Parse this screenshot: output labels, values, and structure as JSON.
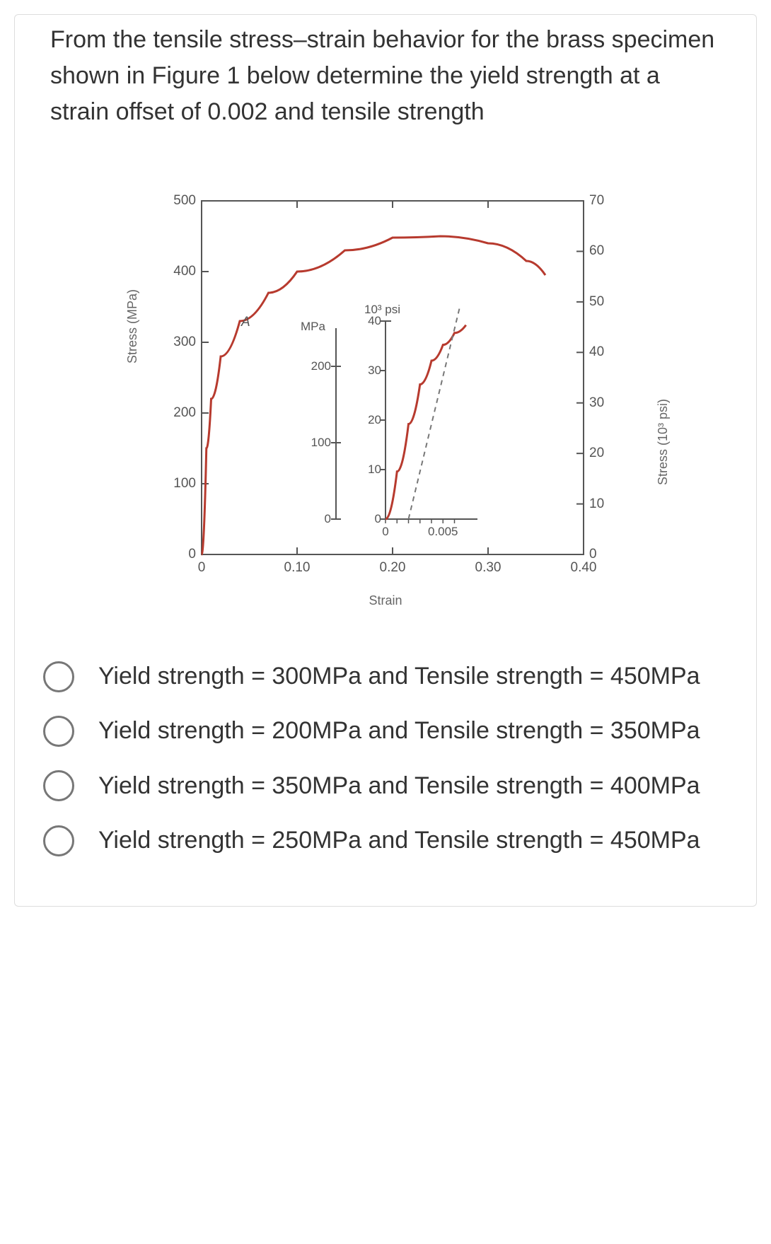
{
  "question": "From the tensile stress–strain behavior for the brass specimen shown in Figure 1 below determine the yield strength at a strain offset of 0.002 and tensile strength",
  "chart": {
    "type": "line",
    "left_axis": {
      "label": "Stress (MPa)",
      "ticks": [
        0,
        100,
        200,
        300,
        400,
        500
      ],
      "lim": [
        0,
        500
      ],
      "fontsize": 18
    },
    "right_axis": {
      "label": "Stress (10³ psi)",
      "ticks": [
        0,
        10,
        20,
        30,
        40,
        50,
        60,
        70
      ],
      "lim": [
        0,
        70
      ],
      "fontsize": 18
    },
    "x_axis": {
      "label": "Strain",
      "ticks": [
        0,
        0.1,
        0.2,
        0.3,
        0.4
      ],
      "lim": [
        0,
        0.4
      ],
      "fontsize": 18
    },
    "series": {
      "name": "brass",
      "color": "#b73a2e",
      "line_width": 3,
      "points_strain": [
        0,
        0.005,
        0.01,
        0.02,
        0.04,
        0.07,
        0.1,
        0.15,
        0.2,
        0.25,
        0.3,
        0.34,
        0.36
      ],
      "points_stress_mpa": [
        0,
        150,
        220,
        280,
        330,
        370,
        400,
        430,
        448,
        450,
        440,
        415,
        395
      ]
    },
    "point_A": {
      "label": "A",
      "strain": 0.04,
      "stress_mpa": 335
    },
    "inset": {
      "left_unit": "MPa",
      "right_unit": "10³ psi",
      "left_ticks": [
        0,
        100,
        200
      ],
      "right_ticks": [
        0,
        10,
        20,
        30,
        40
      ],
      "x_ticks": [
        0,
        0.005
      ],
      "curve_color": "#b73a2e",
      "offset_line_color": "#777",
      "curve_points_x": [
        0,
        0.001,
        0.002,
        0.003,
        0.004,
        0.005,
        0.006,
        0.007
      ],
      "curve_points_mpa": [
        0,
        60,
        120,
        170,
        200,
        220,
        235,
        245
      ],
      "offset_start_x": 0.002
    },
    "background_color": "#ffffff",
    "axis_color": "#555555"
  },
  "options": [
    "Yield strength = 300MPa and Tensile strength = 450MPa",
    "Yield strength = 200MPa and Tensile strength = 350MPa",
    "Yield strength = 350MPa and Tensile strength = 400MPa",
    "Yield strength = 250MPa and Tensile strength = 450MPa"
  ]
}
